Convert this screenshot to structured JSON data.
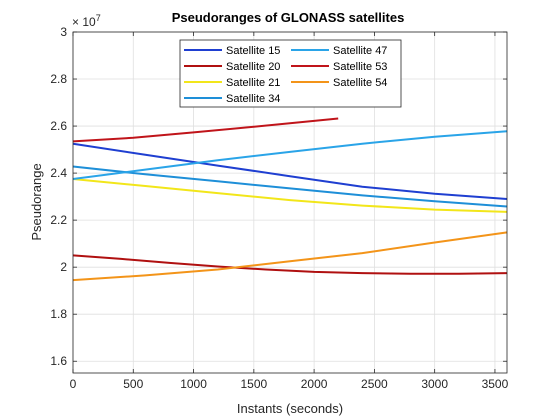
{
  "chart_data": {
    "type": "line",
    "title": "Pseudoranges of GLONASS satellites",
    "xlabel": "Instants (seconds)",
    "ylabel": "Pseudorange",
    "y_multiplier": "× 10",
    "y_exponent": "7",
    "xlim": [
      0,
      3600
    ],
    "ylim": [
      1.55,
      3.0
    ],
    "x_ticks": [
      0,
      500,
      1000,
      1500,
      2000,
      2500,
      3000,
      3500
    ],
    "y_ticks": [
      1.6,
      1.8,
      2.0,
      2.2,
      2.4,
      2.6,
      2.8,
      3.0
    ],
    "x_tick_labels": [
      "0",
      "500",
      "1000",
      "1500",
      "2000",
      "2500",
      "3000",
      "3500"
    ],
    "y_tick_labels": [
      "1.6",
      "1.8",
      "2",
      "2.2",
      "2.4",
      "2.6",
      "2.8",
      "3"
    ],
    "grid": true,
    "legend_position": "top-center",
    "series": [
      {
        "name": "Satellite 15",
        "color": "#1f3fd1",
        "x": [
          0,
          600,
          1200,
          1800,
          2400,
          3000,
          3600
        ],
        "y": [
          2.525,
          2.478,
          2.432,
          2.387,
          2.342,
          2.312,
          2.29
        ]
      },
      {
        "name": "Satellite 20",
        "color": "#b01010",
        "x": [
          0,
          400,
          800,
          1200,
          1600,
          2000,
          2400,
          2800,
          3200,
          3600
        ],
        "y": [
          2.05,
          2.035,
          2.018,
          2.003,
          1.99,
          1.98,
          1.975,
          1.972,
          1.972,
          1.975
        ]
      },
      {
        "name": "Satellite 21",
        "color": "#f2e61a",
        "x": [
          0,
          600,
          1200,
          1800,
          2400,
          3000,
          3600
        ],
        "y": [
          2.375,
          2.345,
          2.315,
          2.285,
          2.262,
          2.245,
          2.235
        ]
      },
      {
        "name": "Satellite 34",
        "color": "#1e8fd8",
        "x": [
          0,
          600,
          1200,
          1800,
          2400,
          3000,
          3600
        ],
        "y": [
          2.428,
          2.395,
          2.365,
          2.335,
          2.305,
          2.28,
          2.258
        ]
      },
      {
        "name": "Satellite 47",
        "color": "#2aa4e8",
        "x": [
          0,
          600,
          1200,
          1800,
          2400,
          3000,
          3600
        ],
        "y": [
          2.375,
          2.415,
          2.455,
          2.49,
          2.525,
          2.555,
          2.578
        ]
      },
      {
        "name": "Satellite 53",
        "color": "#c0141a",
        "x": [
          0,
          500,
          1000,
          1500,
          2000,
          2200
        ],
        "y": [
          2.535,
          2.55,
          2.573,
          2.597,
          2.622,
          2.632
        ]
      },
      {
        "name": "Satellite 54",
        "color": "#f39419",
        "x": [
          0,
          600,
          1200,
          1800,
          2400,
          3000,
          3600
        ],
        "y": [
          1.945,
          1.965,
          1.99,
          2.025,
          2.06,
          2.105,
          2.148
        ]
      }
    ]
  }
}
